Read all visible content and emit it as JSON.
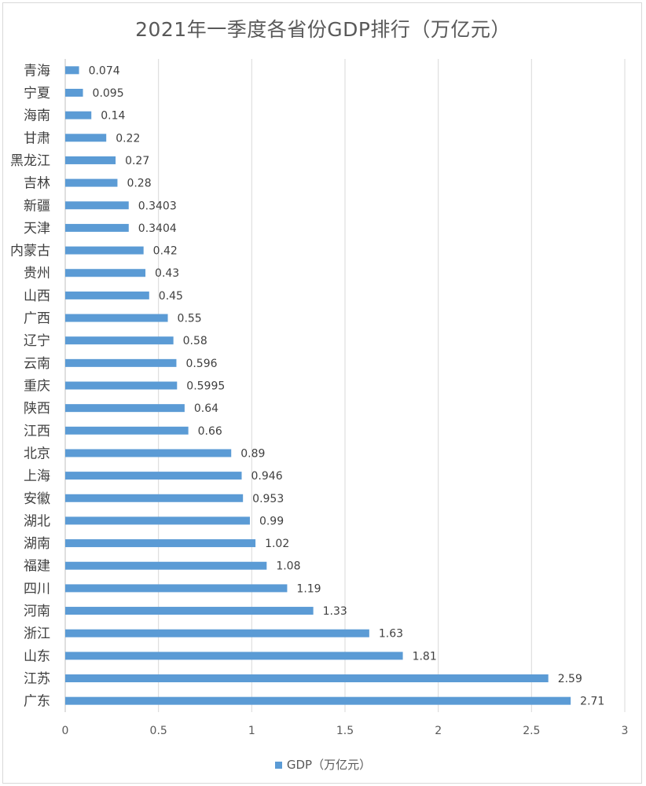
{
  "chart_data": {
    "type": "bar",
    "orientation": "horizontal",
    "title": "2021年一季度各省份GDP排行（万亿元）",
    "categories": [
      "青海",
      "宁夏",
      "海南",
      "甘肃",
      "黑龙江",
      "吉林",
      "新疆",
      "天津",
      "内蒙古",
      "贵州",
      "山西",
      "广西",
      "辽宁",
      "云南",
      "重庆",
      "陕西",
      "江西",
      "北京",
      "上海",
      "安徽",
      "湖北",
      "湖南",
      "福建",
      "四川",
      "河南",
      "浙江",
      "山东",
      "江苏",
      "广东"
    ],
    "series": [
      {
        "name": "GDP（万亿元）",
        "values": [
          0.074,
          0.095,
          0.14,
          0.22,
          0.27,
          0.28,
          0.3403,
          0.3404,
          0.42,
          0.43,
          0.45,
          0.55,
          0.58,
          0.596,
          0.5995,
          0.64,
          0.66,
          0.89,
          0.946,
          0.953,
          0.99,
          1.02,
          1.08,
          1.19,
          1.33,
          1.63,
          1.81,
          2.59,
          2.71
        ],
        "labels": [
          "0.074",
          "0.095",
          "0.14",
          "0.22",
          "0.27",
          "0.28",
          "0.3403",
          "0.3404",
          "0.42",
          "0.43",
          "0.45",
          "0.55",
          "0.58",
          "0.596",
          "0.5995",
          "0.64",
          "0.66",
          "0.89",
          "0.946",
          "0.953",
          "0.99",
          "1.02",
          "1.08",
          "1.19",
          "1.33",
          "1.63",
          "1.81",
          "2.59",
          "2.71"
        ],
        "color": "#5b9bd5"
      }
    ],
    "xlim": [
      0,
      3
    ],
    "xticks": [
      "0",
      "0.5",
      "1",
      "1.5",
      "2",
      "2.5",
      "3"
    ],
    "grid": true,
    "legend": "bottom"
  }
}
